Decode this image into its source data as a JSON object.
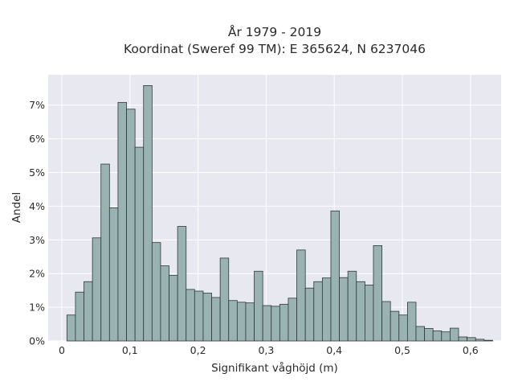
{
  "chart_data": {
    "type": "bar",
    "title_line1": "År 1979 - 2019",
    "title_line2": "Koordinat (Sweref 99 TM): E 365624, N 6237046",
    "xlabel": "Signifikant våghöjd (m)",
    "ylabel": "Andel",
    "xlim": [
      -0.02,
      0.645
    ],
    "ylim": [
      0,
      7.9
    ],
    "x_ticks": [
      0,
      0.1,
      0.2,
      0.3,
      0.4,
      0.5,
      0.6
    ],
    "x_tick_labels": [
      "0",
      "0,1",
      "0,2",
      "0,3",
      "0,4",
      "0,5",
      "0,6"
    ],
    "y_ticks": [
      0,
      1,
      2,
      3,
      4,
      5,
      6,
      7
    ],
    "y_tick_labels": [
      "0%",
      "1%",
      "2%",
      "3%",
      "4%",
      "5%",
      "6%",
      "7%"
    ],
    "bin_start": 0.0075,
    "bin_width": 0.0125,
    "values": [
      0.77,
      1.45,
      1.76,
      3.06,
      5.25,
      3.95,
      7.08,
      6.88,
      5.75,
      7.58,
      2.92,
      2.23,
      1.95,
      3.4,
      1.53,
      1.48,
      1.42,
      1.29,
      2.46,
      1.2,
      1.15,
      1.13,
      2.07,
      1.05,
      1.03,
      1.09,
      1.27,
      2.7,
      1.57,
      1.76,
      1.87,
      3.86,
      1.88,
      2.07,
      1.76,
      1.66,
      2.83,
      1.17,
      0.88,
      0.77,
      1.15,
      0.43,
      0.37,
      0.3,
      0.27,
      0.38,
      0.12,
      0.1,
      0.05,
      0.02
    ],
    "grid": true,
    "colors": {
      "bar_fill": "#9ab3b2",
      "bar_stroke": "#2b3a3a",
      "plot_bg": "#e8e8f1",
      "grid": "#ffffff"
    }
  }
}
